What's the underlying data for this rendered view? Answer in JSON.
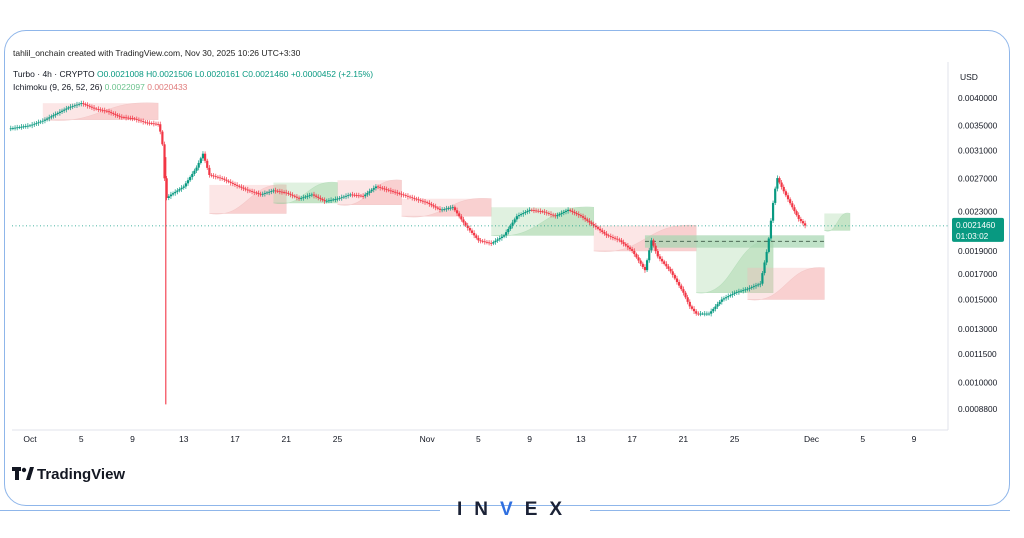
{
  "header": {
    "credit": "tahlil_onchain created with TradingView.com, Nov 30, 2025 10:26 UTC+3:30",
    "symbol": "Turbo · 4h · CRYPTO",
    "ohlc": {
      "open": "O0.0021008",
      "high": "H0.0021506",
      "low": "L0.0020161",
      "close": "C0.0021460",
      "change": "+0.0000452 (+2.15%)"
    },
    "indicator": {
      "label": "Ichimoku (9, 26, 52, 26)",
      "value1": "0.0022097",
      "value2": "0.0020433"
    }
  },
  "currency": "USD",
  "last_price": {
    "value": "0.0021460",
    "countdown": "01:03:02"
  },
  "branding": {
    "tradingview": "TradingView",
    "invex_left": "IN",
    "invex_v": "V",
    "invex_right": "EX"
  },
  "colors": {
    "up": "#089981",
    "down": "#f23645",
    "cloud_green": "#a5d6a7",
    "cloud_red": "#f5b7b7",
    "zone": "#a5d6b0",
    "accent": "#8fb6ea"
  },
  "chart_data": {
    "type": "candlestick",
    "title": "",
    "interval": "4h",
    "y_scale": "log",
    "y_range": [
      0.00082,
      0.00044
    ],
    "y_ticks": [
      "0.0040000",
      "0.0035000",
      "0.0031000",
      "0.0027000",
      "0.0023000",
      "0.0019000",
      "0.0017000",
      "0.0015000",
      "0.0013000",
      "0.0011500",
      "0.0010000",
      "0.0008800"
    ],
    "y_tick_values": [
      0.004,
      0.0035,
      0.0031,
      0.0027,
      0.0023,
      0.0019,
      0.0017,
      0.0015,
      0.0013,
      0.00115,
      0.001,
      0.00088
    ],
    "x_ticks": [
      {
        "label": "Oct",
        "day": 0
      },
      {
        "label": "5",
        "day": 4
      },
      {
        "label": "9",
        "day": 8
      },
      {
        "label": "13",
        "day": 12
      },
      {
        "label": "17",
        "day": 16
      },
      {
        "label": "21",
        "day": 20
      },
      {
        "label": "25",
        "day": 24
      },
      {
        "label": "Nov",
        "day": 31
      },
      {
        "label": "5",
        "day": 35
      },
      {
        "label": "9",
        "day": 39
      },
      {
        "label": "13",
        "day": 43
      },
      {
        "label": "17",
        "day": 47
      },
      {
        "label": "21",
        "day": 51
      },
      {
        "label": "25",
        "day": 55
      },
      {
        "label": "Dec",
        "day": 61
      },
      {
        "label": "5",
        "day": 65
      },
      {
        "label": "9",
        "day": 69
      }
    ],
    "price_path": [
      [
        -1.5,
        0.00345
      ],
      [
        0,
        0.0035
      ],
      [
        1,
        0.00358
      ],
      [
        2,
        0.0037
      ],
      [
        3,
        0.00382
      ],
      [
        4,
        0.0039
      ],
      [
        5,
        0.0038
      ],
      [
        6,
        0.00375
      ],
      [
        7,
        0.00365
      ],
      [
        8,
        0.00362
      ],
      [
        9,
        0.00355
      ],
      [
        10,
        0.00352
      ],
      [
        10.3,
        0.0033
      ],
      [
        10.6,
        0.00245
      ],
      [
        11,
        0.0025
      ],
      [
        12,
        0.0026
      ],
      [
        13,
        0.00285
      ],
      [
        13.5,
        0.00305
      ],
      [
        14,
        0.00275
      ],
      [
        15,
        0.0027
      ],
      [
        16,
        0.00262
      ],
      [
        17,
        0.00255
      ],
      [
        18,
        0.0025
      ],
      [
        19,
        0.00255
      ],
      [
        20,
        0.00252
      ],
      [
        21,
        0.00245
      ],
      [
        22,
        0.0025
      ],
      [
        23,
        0.00242
      ],
      [
        24,
        0.00245
      ],
      [
        25,
        0.0025
      ],
      [
        26,
        0.00248
      ],
      [
        27,
        0.0026
      ],
      [
        28,
        0.00255
      ],
      [
        29,
        0.0025
      ],
      [
        30,
        0.00245
      ],
      [
        31,
        0.0024
      ],
      [
        32,
        0.00232
      ],
      [
        33,
        0.00235
      ],
      [
        34,
        0.00215
      ],
      [
        35,
        0.002
      ],
      [
        36,
        0.00197
      ],
      [
        37,
        0.00205
      ],
      [
        38,
        0.00225
      ],
      [
        39,
        0.00232
      ],
      [
        40,
        0.0023
      ],
      [
        41,
        0.00225
      ],
      [
        42,
        0.00232
      ],
      [
        43,
        0.00225
      ],
      [
        44,
        0.00215
      ],
      [
        45,
        0.00205
      ],
      [
        46,
        0.002
      ],
      [
        47,
        0.0019
      ],
      [
        48,
        0.00173
      ],
      [
        48.5,
        0.002
      ],
      [
        49,
        0.00185
      ],
      [
        50,
        0.00172
      ],
      [
        51,
        0.00155
      ],
      [
        51.5,
        0.00145
      ],
      [
        52,
        0.0014
      ],
      [
        53,
        0.0014
      ],
      [
        54,
        0.0015
      ],
      [
        55,
        0.00155
      ],
      [
        56,
        0.00158
      ],
      [
        57,
        0.00162
      ],
      [
        57.6,
        0.00195
      ],
      [
        58,
        0.0024
      ],
      [
        58.3,
        0.00272
      ],
      [
        58.8,
        0.00255
      ],
      [
        59.5,
        0.00235
      ],
      [
        60,
        0.00222
      ],
      [
        60.5,
        0.00215
      ]
    ],
    "ichimoku_cloud": [
      {
        "from": 1,
        "to": 10,
        "top": 0.0039,
        "bottom": 0.0036,
        "color": "red"
      },
      {
        "from": 14,
        "to": 20,
        "top": 0.00262,
        "bottom": 0.00228,
        "color": "red"
      },
      {
        "from": 19,
        "to": 24,
        "top": 0.00265,
        "bottom": 0.0024,
        "color": "green"
      },
      {
        "from": 24,
        "to": 29,
        "top": 0.00268,
        "bottom": 0.00238,
        "color": "red"
      },
      {
        "from": 29,
        "to": 36,
        "top": 0.00245,
        "bottom": 0.00225,
        "color": "red"
      },
      {
        "from": 36,
        "to": 44,
        "top": 0.00235,
        "bottom": 0.00205,
        "color": "green"
      },
      {
        "from": 44,
        "to": 52,
        "top": 0.00215,
        "bottom": 0.0019,
        "color": "red"
      },
      {
        "from": 52,
        "to": 58,
        "top": 0.002,
        "bottom": 0.00155,
        "color": "green"
      },
      {
        "from": 56,
        "to": 62,
        "top": 0.00175,
        "bottom": 0.0015,
        "color": "red"
      },
      {
        "from": 62,
        "to": 64,
        "top": 0.00228,
        "bottom": 0.0021,
        "color": "green"
      }
    ],
    "wick_low": {
      "day": 10.6,
      "value": 0.0009
    },
    "zone": {
      "from": 48,
      "to": 62,
      "top": 0.00205,
      "bottom": 0.00193,
      "dashed_at": 0.00199
    }
  }
}
